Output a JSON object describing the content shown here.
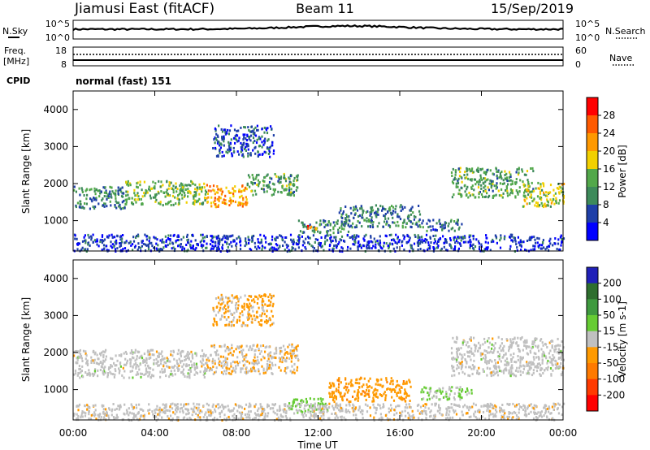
{
  "header": {
    "station": "Jiamusi East (fitACF)",
    "beam": "Beam 11",
    "date": "15/Sep/2019"
  },
  "noise_panel": {
    "left_label": "N.Sky",
    "right_label": "N.Search",
    "left_ticks": [
      "10^5",
      "10^0"
    ],
    "right_ticks": [
      "10^5",
      "10^0"
    ]
  },
  "freq_panel": {
    "left_label_line1": "Freq.",
    "left_label_line2": "[MHz]",
    "right_label": "Nave",
    "left_ticks": [
      "18",
      "8"
    ],
    "right_ticks": [
      "60",
      "0"
    ],
    "cpid_label": "CPID",
    "cpid_value": "normal (fast) 151"
  },
  "colors": {
    "power_scale": [
      "#0000ff",
      "#1e3fa8",
      "#3d8a5a",
      "#52a84a",
      "#f2d000",
      "#ff9900",
      "#ff5a00",
      "#ff0000"
    ],
    "velocity_scale": [
      "#2020b8",
      "#2e6e2e",
      "#3f9a3f",
      "#66cc33",
      "#c0c0c0",
      "#ff9a00",
      "#ff7a00",
      "#ff3a00",
      "#ff0000"
    ]
  },
  "chart_data": [
    {
      "type": "heatmap",
      "name": "power",
      "title": "Power",
      "ylabel": "Slant Range [km]",
      "xlabel": "",
      "ylim": [
        180,
        4500
      ],
      "yticks": [
        "1000",
        "2000",
        "3000",
        "4000"
      ],
      "ytick_values": [
        1000,
        2000,
        3000,
        4000
      ],
      "colorbar_label": "Power [dB]",
      "colorbar_ticks": [
        "4",
        "8",
        "12",
        "16",
        "20",
        "24",
        "28"
      ],
      "colorbar_range": [
        0,
        32
      ],
      "regions": [
        {
          "t0": 0.0,
          "t1": 2.5,
          "r0": 1350,
          "r1": 1950,
          "v": 10
        },
        {
          "t0": 2.5,
          "t1": 6.5,
          "r0": 1450,
          "r1": 2100,
          "v": 14
        },
        {
          "t0": 6.5,
          "t1": 8.5,
          "r0": 1400,
          "r1": 2000,
          "v": 22
        },
        {
          "t0": 8.5,
          "t1": 11.0,
          "r0": 1700,
          "r1": 2300,
          "v": 12
        },
        {
          "t0": 6.8,
          "t1": 9.8,
          "r0": 2750,
          "r1": 3600,
          "v": 6
        },
        {
          "t0": 11.0,
          "t1": 13.5,
          "r0": 700,
          "r1": 1050,
          "v": 10
        },
        {
          "t0": 11.3,
          "t1": 11.9,
          "r0": 750,
          "r1": 900,
          "v": 24
        },
        {
          "t0": 13.0,
          "t1": 17.0,
          "r0": 850,
          "r1": 1450,
          "v": 9
        },
        {
          "t0": 17.0,
          "t1": 19.0,
          "r0": 750,
          "r1": 1050,
          "v": 8
        },
        {
          "t0": 18.5,
          "t1": 22.5,
          "r0": 1650,
          "r1": 2450,
          "v": 12
        },
        {
          "t0": 22.0,
          "t1": 24.0,
          "r0": 1400,
          "r1": 2050,
          "v": 16
        },
        {
          "t0": 0.0,
          "t1": 24.0,
          "r0": 200,
          "r1": 650,
          "v": 5
        }
      ]
    },
    {
      "type": "heatmap",
      "name": "velocity",
      "title": "Velocity",
      "ylabel": "Slant Range [km]",
      "xlabel": "Time UT",
      "ylim": [
        180,
        4500
      ],
      "yticks": [
        "1000",
        "2000",
        "3000",
        "4000"
      ],
      "ytick_values": [
        1000,
        2000,
        3000,
        4000
      ],
      "colorbar_label": "Velocity [m s-1]",
      "colorbar_ticks": [
        "200",
        "100",
        "50",
        "15",
        "-15",
        "-50",
        "-100",
        "-200"
      ],
      "colorbar_range": [
        -250,
        250
      ],
      "x_ticks": [
        "00:00",
        "04:00",
        "08:00",
        "12:00",
        "16:00",
        "20:00",
        "00:00"
      ],
      "x_tick_hours": [
        0,
        4,
        8,
        12,
        16,
        20,
        24
      ],
      "regions": [
        {
          "t0": 0.0,
          "t1": 6.5,
          "r0": 1350,
          "r1": 2100,
          "v": 0
        },
        {
          "t0": 6.5,
          "t1": 11.0,
          "r0": 1450,
          "r1": 2250,
          "v": -20
        },
        {
          "t0": 6.8,
          "t1": 9.8,
          "r0": 2750,
          "r1": 3600,
          "v": -40
        },
        {
          "t0": 10.5,
          "t1": 12.5,
          "r0": 400,
          "r1": 800,
          "v": 40
        },
        {
          "t0": 12.5,
          "t1": 16.5,
          "r0": 700,
          "r1": 1350,
          "v": -60
        },
        {
          "t0": 17.0,
          "t1": 19.5,
          "r0": 750,
          "r1": 1100,
          "v": 40
        },
        {
          "t0": 18.5,
          "t1": 24.0,
          "r0": 1400,
          "r1": 2450,
          "v": 0
        },
        {
          "t0": 0.0,
          "t1": 24.0,
          "r0": 200,
          "r1": 650,
          "v": -5
        }
      ]
    }
  ]
}
